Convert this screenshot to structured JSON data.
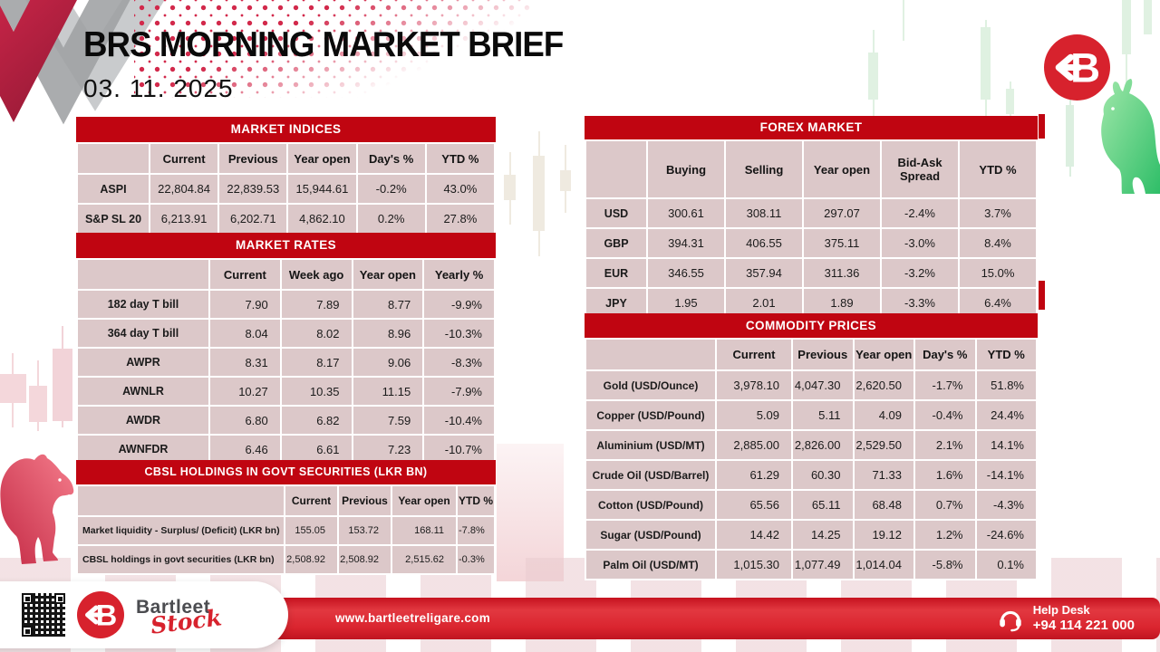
{
  "header": {
    "title": "BRS MORNING MARKET BRIEF",
    "date": "03. 11. 2025"
  },
  "logo": {
    "letter": "B"
  },
  "tables": {
    "market_indices": {
      "title": "MARKET INDICES",
      "columns": [
        "",
        "Current",
        "Previous",
        "Year open",
        "Day's %",
        "YTD %"
      ],
      "rows": [
        {
          "label": "ASPI",
          "values": [
            "22,804.84",
            "22,839.53",
            "15,944.61",
            "-0.2%",
            "43.0%"
          ]
        },
        {
          "label": "S&P SL 20",
          "values": [
            "6,213.91",
            "6,202.71",
            "4,862.10",
            "0.2%",
            "27.8%"
          ]
        }
      ]
    },
    "market_rates": {
      "title": "MARKET RATES",
      "columns": [
        "",
        "Current",
        "Week ago",
        "Year open",
        "Yearly %"
      ],
      "rows": [
        {
          "label": "182 day T bill",
          "values": [
            "7.90",
            "7.89",
            "8.77",
            "-9.9%"
          ]
        },
        {
          "label": "364 day T bill",
          "values": [
            "8.04",
            "8.02",
            "8.96",
            "-10.3%"
          ]
        },
        {
          "label": "AWPR",
          "values": [
            "8.31",
            "8.17",
            "9.06",
            "-8.3%"
          ]
        },
        {
          "label": "AWNLR",
          "values": [
            "10.27",
            "10.35",
            "11.15",
            "-7.9%"
          ]
        },
        {
          "label": "AWDR",
          "values": [
            "6.80",
            "6.82",
            "7.59",
            "-10.4%"
          ]
        },
        {
          "label": "AWNFDR",
          "values": [
            "6.46",
            "6.61",
            "7.23",
            "-10.7%"
          ]
        }
      ]
    },
    "cbsl_holdings": {
      "title": "CBSL HOLDINGS IN GOVT SECURITIES (LKR BN)",
      "columns": [
        "",
        "Current",
        "Previous",
        "Year open",
        "YTD %"
      ],
      "rows": [
        {
          "label": "Market liquidity - Surplus/ (Deficit) (LKR bn)",
          "values": [
            "155.05",
            "153.72",
            "168.11",
            "-7.8%"
          ]
        },
        {
          "label": "CBSL holdings in govt securities (LKR bn)",
          "values": [
            "2,508.92",
            "2,508.92",
            "2,515.62",
            "-0.3%"
          ]
        }
      ]
    },
    "forex_market": {
      "title": "FOREX MARKET",
      "columns": [
        "",
        "Buying",
        "Selling",
        "Year open",
        "Bid-Ask Spread",
        "YTD %"
      ],
      "rows": [
        {
          "label": "USD",
          "values": [
            "300.61",
            "308.11",
            "297.07",
            "-2.4%",
            "3.7%"
          ]
        },
        {
          "label": "GBP",
          "values": [
            "394.31",
            "406.55",
            "375.11",
            "-3.0%",
            "8.4%"
          ]
        },
        {
          "label": "EUR",
          "values": [
            "346.55",
            "357.94",
            "311.36",
            "-3.2%",
            "15.0%"
          ]
        },
        {
          "label": "JPY",
          "values": [
            "1.95",
            "2.01",
            "1.89",
            "-3.3%",
            "6.4%"
          ]
        }
      ]
    },
    "commodity_prices": {
      "title": "COMMODITY PRICES",
      "columns": [
        "",
        "Current",
        "Previous",
        "Year open",
        "Day's %",
        "YTD %"
      ],
      "rows": [
        {
          "label": "Gold (USD/Ounce)",
          "values": [
            "3,978.10",
            "4,047.30",
            "2,620.50",
            "-1.7%",
            "51.8%"
          ]
        },
        {
          "label": "Copper (USD/Pound)",
          "values": [
            "5.09",
            "5.11",
            "4.09",
            "-0.4%",
            "24.4%"
          ]
        },
        {
          "label": "Aluminium (USD/MT)",
          "values": [
            "2,885.00",
            "2,826.00",
            "2,529.50",
            "2.1%",
            "14.1%"
          ]
        },
        {
          "label": "Crude Oil (USD/Barrel)",
          "values": [
            "61.29",
            "60.30",
            "71.33",
            "1.6%",
            "-14.1%"
          ]
        },
        {
          "label": "Cotton (USD/Pound)",
          "values": [
            "65.56",
            "65.11",
            "68.48",
            "0.7%",
            "-4.3%"
          ]
        },
        {
          "label": "Sugar (USD/Pound)",
          "values": [
            "14.42",
            "14.25",
            "19.12",
            "1.2%",
            "-24.6%"
          ]
        },
        {
          "label": "Palm Oil (USD/MT)",
          "values": [
            "1,015.30",
            "1,077.49",
            "1,014.04",
            "-5.8%",
            "0.1%"
          ]
        }
      ]
    }
  },
  "footer": {
    "brand_name": "Bartleet",
    "brand_sub": "Stock",
    "website": "www.bartleetreligare.com",
    "help_desk_label": "Help Desk",
    "help_desk_phone": "+94 114 221 000"
  },
  "colors": {
    "table_header_red": "#c00511",
    "cell_pink": "#dcc8c9",
    "footer_bar_red": "#da252f",
    "logo_red": "#d7222d",
    "dot_pattern_red": "#d2294b",
    "bull_green": "#3fc46e",
    "bear_red": "#d8384f"
  }
}
